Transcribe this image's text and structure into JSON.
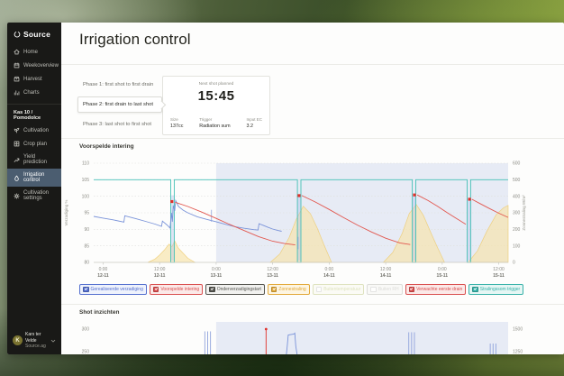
{
  "sidebar": {
    "logo": {
      "text": "Source",
      "icon": "source-logo-icon"
    },
    "nav_primary": [
      {
        "label": "Home",
        "icon": "home-icon"
      },
      {
        "label": "Weekoverview",
        "icon": "calendar-icon"
      },
      {
        "label": "Harvest",
        "icon": "harvest-icon"
      },
      {
        "label": "Charts",
        "icon": "charts-icon"
      }
    ],
    "section_label": "Kas 10 / Pomodolce",
    "nav_secondary": [
      {
        "label": "Cultivation",
        "icon": "cultivation-icon",
        "active": false
      },
      {
        "label": "Crop plan",
        "icon": "crop-plan-icon",
        "active": false
      },
      {
        "label": "Yield prediction",
        "icon": "yield-icon",
        "active": false
      },
      {
        "label": "Irrigation control",
        "icon": "irrigation-icon",
        "active": true
      },
      {
        "label": "Cultivation settings",
        "icon": "settings-icon",
        "active": false
      }
    ],
    "user": {
      "initial": "K",
      "name": "Kars ter Velde",
      "org": "Source.ag",
      "chevron": "chevron-down-icon"
    }
  },
  "header": {
    "title": "Irrigation control"
  },
  "phases": {
    "items": [
      {
        "label": "Phase 1: first shot to first drain",
        "selected": false
      },
      {
        "label": "Phase 2: first drain to last shot",
        "selected": true
      },
      {
        "label": "Phase 3: last shot to first shot",
        "selected": false
      }
    ],
    "next_shot": {
      "caption": "Next shot planned",
      "time": "15:45",
      "details": [
        {
          "label": "Size",
          "value": "137cc"
        },
        {
          "label": "Trigger",
          "value": "Radiation sum"
        },
        {
          "label": "Input EC",
          "value": "3.2"
        }
      ]
    }
  },
  "sections": {
    "chart1_title": "Voorspelde intering",
    "chart2_title": "Shot inzichten"
  },
  "legend": [
    {
      "label": "Gerealiseerde verzadiging",
      "color": "#5570cf",
      "bg": "#eef2fc",
      "checked": true
    },
    {
      "label": "Voorspelde intering",
      "color": "#d94f4f",
      "bg": "#fbe9e8",
      "checked": true
    },
    {
      "label": "Onderverzadigingstart",
      "color": "#55554f",
      "bg": "#f1f1ef",
      "checked": true
    },
    {
      "label": "Zonnestraling",
      "color": "#e2a93a",
      "bg": "#fdf5e2",
      "checked": true
    },
    {
      "label": "Buitentemperatuur",
      "color": "#c6cd8e",
      "bg": "#fafbf0",
      "checked": false
    },
    {
      "label": "Buiten RH",
      "color": "#c2c2bc",
      "bg": "#f6f6f4",
      "checked": false
    },
    {
      "label": "Verwachte eerste drain",
      "color": "#d94f4f",
      "bg": "#fbe9e8",
      "checked": true
    },
    {
      "label": "Stralingssom trigger",
      "color": "#38b2a9",
      "bg": "#e5f6f4",
      "checked": true
    }
  ],
  "chart_data": [
    {
      "type": "line",
      "title": "Voorspelde intering",
      "ylabel_left": "Verzadiging %",
      "ylabel_right": "Zonnestraling W/m²",
      "x_domain_hours": [
        -2,
        86
      ],
      "ylim_left": [
        80,
        110
      ],
      "ylim_right": [
        0,
        600
      ],
      "x_ticks": [
        {
          "h": 0,
          "time": "0:00",
          "date": "12-11"
        },
        {
          "h": 12,
          "time": "12:00",
          "date": "12-11"
        },
        {
          "h": 24,
          "time": "0:00",
          "date": "13-11"
        },
        {
          "h": 36,
          "time": "12:00",
          "date": "13-11"
        },
        {
          "h": 48,
          "time": "0:00",
          "date": "14-11"
        },
        {
          "h": 60,
          "time": "12:00",
          "date": "14-11"
        },
        {
          "h": 72,
          "time": "0:00",
          "date": "15-11"
        },
        {
          "h": 84,
          "time": "12:00",
          "date": "15-11"
        }
      ],
      "y_ticks_left": [
        80,
        85,
        90,
        95,
        100,
        105,
        110
      ],
      "y_ticks_right": [
        0,
        100,
        200,
        300,
        400,
        500,
        600
      ],
      "forecast_shading_start_hour": 24,
      "shading_color": "#e7ebf5",
      "series": {
        "trigger": {
          "name": "Stralingssom trigger",
          "color": "#45c0b6",
          "points": [
            [
              -2,
              105
            ],
            [
              14.35,
              105
            ],
            [
              14.35,
              80
            ],
            [
              15.1,
              80
            ],
            [
              15.1,
              105
            ],
            [
              41.25,
              105
            ],
            [
              41.25,
              80
            ],
            [
              42,
              80
            ],
            [
              42,
              105
            ],
            [
              65.65,
              105
            ],
            [
              65.65,
              80
            ],
            [
              66.4,
              80
            ],
            [
              66.4,
              105
            ],
            [
              77.3,
              105
            ],
            [
              77.3,
              80
            ],
            [
              78.05,
              80
            ],
            [
              78.05,
              105
            ],
            [
              86,
              105
            ]
          ]
        },
        "radiation": {
          "name": "Zonnestraling",
          "color": "#eec96a",
          "fill": "#f7e3a8",
          "axis": "right",
          "humps": [
            [
              [
                9.5,
                0
              ],
              [
                11,
                20
              ],
              [
                12,
                45
              ],
              [
                13,
                75
              ],
              [
                14,
                110
              ],
              [
                14.6,
                95
              ],
              [
                15.2,
                130
              ],
              [
                16,
                85
              ],
              [
                17,
                55
              ],
              [
                18,
                25
              ],
              [
                19.5,
                0
              ]
            ],
            [
              [
                35.5,
                0
              ],
              [
                37.5,
                50
              ],
              [
                39.5,
                150
              ],
              [
                41,
                260
              ],
              [
                42.5,
                340
              ],
              [
                44,
                295
              ],
              [
                45.5,
                205
              ],
              [
                47,
                100
              ],
              [
                48.5,
                0
              ]
            ],
            [
              [
                59.5,
                0
              ],
              [
                61.5,
                60
              ],
              [
                63.5,
                175
              ],
              [
                65,
                295
              ],
              [
                66.5,
                350
              ],
              [
                68,
                285
              ],
              [
                69.5,
                185
              ],
              [
                71,
                90
              ],
              [
                72.5,
                0
              ]
            ],
            [
              [
                77.5,
                0
              ],
              [
                79.5,
                70
              ],
              [
                81.5,
                190
              ],
              [
                83.5,
                290
              ],
              [
                85,
                330
              ],
              [
                86,
                345
              ],
              [
                86,
                0
              ]
            ]
          ]
        },
        "realized": {
          "name": "Gerealiseerde verzadiging",
          "color": "#7a93d9",
          "points": [
            [
              -2,
              93.9
            ],
            [
              0,
              93.4
            ],
            [
              2,
              92.9
            ],
            [
              4.4,
              92.2
            ],
            [
              4.6,
              94.1
            ],
            [
              7,
              93.2
            ],
            [
              9,
              92.4
            ],
            [
              11,
              91.6
            ],
            [
              12.4,
              90.9
            ],
            [
              12.6,
              92.5
            ],
            [
              13.6,
              91.3
            ],
            [
              14.2,
              90.4
            ],
            [
              14.5,
              95
            ],
            [
              14.7,
              92.3
            ],
            [
              14.9,
              97.2
            ],
            [
              15.2,
              95.6
            ],
            [
              15.4,
              98.7
            ],
            [
              16,
              96.9
            ],
            [
              17,
              95.8
            ],
            [
              18,
              95
            ],
            [
              20,
              93.8
            ],
            [
              22,
              93
            ],
            [
              24,
              92.3
            ],
            [
              26,
              91.5
            ],
            [
              28,
              90.8
            ],
            [
              30,
              90.3
            ],
            [
              32,
              89.9
            ],
            [
              32.9,
              89.8
            ],
            [
              33.1,
              91.7
            ],
            [
              34,
              91.2
            ],
            [
              35,
              90.6
            ],
            [
              36,
              90.1
            ],
            [
              37,
              89.7
            ],
            [
              37.9,
              89.4
            ]
          ]
        },
        "predicted": {
          "name": "Voorspelde intering",
          "color": "#e2574f",
          "segments": [
            [
              [
                15.3,
                98.2
              ],
              [
                18,
                96.9
              ],
              [
                21,
                95.2
              ],
              [
                24,
                93.3
              ],
              [
                27,
                91.4
              ],
              [
                30,
                89.6
              ],
              [
                33,
                87.8
              ],
              [
                36,
                86.4
              ],
              [
                38.5,
                85.7
              ],
              [
                40.8,
                85.3
              ]
            ],
            [
              [
                42.2,
                100.2
              ],
              [
                45,
                98.3
              ],
              [
                48,
                96
              ],
              [
                51,
                93.6
              ],
              [
                54,
                91.3
              ],
              [
                57,
                89.2
              ],
              [
                60,
                87.3
              ],
              [
                63,
                85.9
              ],
              [
                65.2,
                85.4
              ]
            ],
            [
              [
                66.7,
                100.4
              ],
              [
                69,
                98.7
              ],
              [
                71,
                97
              ],
              [
                73,
                95.1
              ],
              [
                75,
                93.3
              ],
              [
                77,
                91.5
              ]
            ],
            [
              [
                78.3,
                99.1
              ],
              [
                80,
                97.8
              ],
              [
                82,
                96.3
              ],
              [
                84,
                94.9
              ],
              [
                86,
                93.6
              ]
            ]
          ]
        },
        "drain_markers": {
          "name": "Verwachte eerste drain",
          "color": "#e0302a",
          "points": [
            [
              14.6,
              98.4
            ],
            [
              41.6,
              100.2
            ],
            [
              66.1,
              100.4
            ],
            [
              77.8,
              99.1
            ]
          ]
        },
        "shot_bars": {
          "color": "#aebfe8",
          "bars": [
            {
              "h": 14.8,
              "v1": 80.5,
              "v2": 100.3
            },
            {
              "h": 41.7,
              "v1": 80.5,
              "v2": 100.3
            },
            {
              "h": 66.1,
              "v1": 80.5,
              "v2": 100.3
            },
            {
              "h": 77.8,
              "v1": 80.5,
              "v2": 99.2
            }
          ]
        },
        "event_ticks": {
          "color": "#8fa3dc",
          "ticks": [
            {
              "h": 23,
              "v1": 92.3,
              "v2": 95.9
            },
            {
              "h": 41.4,
              "v1": 84,
              "v2": 87.7
            }
          ]
        }
      }
    },
    {
      "type": "event-spikes",
      "title": "Shot inzichten",
      "x_domain_hours": [
        -2,
        86
      ],
      "visible_y_ticks_left": [
        300,
        250
      ],
      "visible_y_ticks_right": [
        1500,
        1250
      ],
      "forecast_shading_start_hour": 24,
      "shading_color": "#e7ebf5",
      "spike_color": "#8fa3dc",
      "profile_color": "#7a93d9",
      "marker_color": "#e0302a",
      "spike_clusters": [
        {
          "h": [
            21.6,
            22.2,
            22.8
          ],
          "top_value": 295
        },
        {
          "h": [
            64.9,
            65.5,
            66.1
          ],
          "top_value": 293
        },
        {
          "h": [
            82.2,
            82.8,
            83.4
          ],
          "top_value": 268
        }
      ],
      "profile_points": [
        [
          38.9,
          243
        ],
        [
          39.1,
          262
        ],
        [
          39.3,
          287
        ],
        [
          40.5,
          289
        ],
        [
          40.7,
          291
        ],
        [
          40.9,
          262
        ],
        [
          41.2,
          243
        ]
      ],
      "next_shot_marker": {
        "h": 34.6,
        "top_value": 300
      }
    }
  ]
}
